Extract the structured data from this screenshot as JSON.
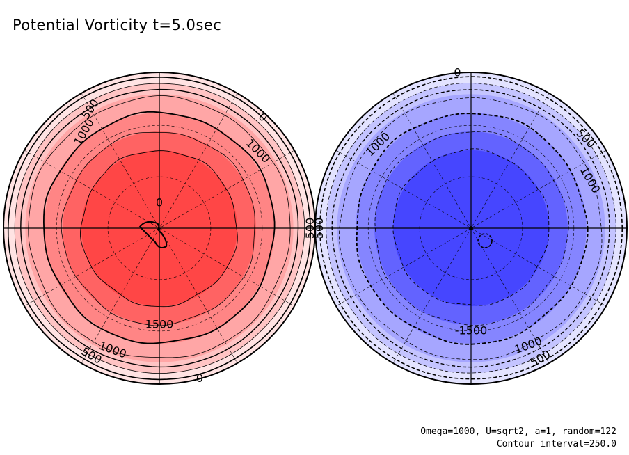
{
  "title": "Potential Vorticity t=5.0sec",
  "footer": {
    "params": "Omega=1000, U=sqrt2, a=1, random=122",
    "contour_interval": "Contour interval=250.0"
  },
  "colors": {
    "positive_bands": [
      "#ffe3e3",
      "#ffc4c4",
      "#ffa6a6",
      "#ff8585",
      "#ff6363",
      "#ff4646"
    ],
    "negative_bands": [
      "#e3e3ff",
      "#c4c4ff",
      "#a6a6ff",
      "#8585ff",
      "#6363ff",
      "#4646ff"
    ]
  },
  "left_disc": {
    "name": "positive-hemisphere",
    "labels": [
      {
        "text": "500",
        "angle": 240,
        "r": 0.88,
        "rot": -55
      },
      {
        "text": "1000",
        "angle": 232,
        "r": 0.78,
        "rot": -60
      },
      {
        "text": "0",
        "angle": 313,
        "r": 0.97,
        "rot": 45
      },
      {
        "text": "1000",
        "angle": 322,
        "r": 0.8,
        "rot": 45
      },
      {
        "text": "500",
        "angle": 0,
        "r": 0.97,
        "rot": -90
      },
      {
        "text": "1500",
        "angle": 90,
        "r": 0.62,
        "rot": 0
      },
      {
        "text": "1000",
        "angle": 111,
        "r": 0.84,
        "rot": 20
      },
      {
        "text": "500",
        "angle": 118,
        "r": 0.93,
        "rot": 30
      },
      {
        "text": "0",
        "angle": 75,
        "r": 1.0,
        "rot": 0
      },
      {
        "text": "0",
        "angle": 270,
        "r": 0.16,
        "rot": 0
      }
    ]
  },
  "right_disc": {
    "name": "negative-hemisphere",
    "labels": [
      {
        "text": "0",
        "angle": 265,
        "r": 1.0,
        "rot": 0
      },
      {
        "text": "1000",
        "angle": 222,
        "r": 0.8,
        "rot": -45
      },
      {
        "text": "500",
        "angle": 322,
        "r": 0.93,
        "rot": 45
      },
      {
        "text": "1000",
        "angle": 338,
        "r": 0.82,
        "rot": 60
      },
      {
        "text": "500",
        "angle": 180,
        "r": 0.97,
        "rot": -90
      },
      {
        "text": "-1500",
        "angle": 90,
        "r": 0.66,
        "rot": 0
      },
      {
        "text": "1000",
        "angle": 64,
        "r": 0.84,
        "rot": -20
      },
      {
        "text": "500",
        "angle": 62,
        "r": 0.95,
        "rot": -30
      }
    ]
  }
}
